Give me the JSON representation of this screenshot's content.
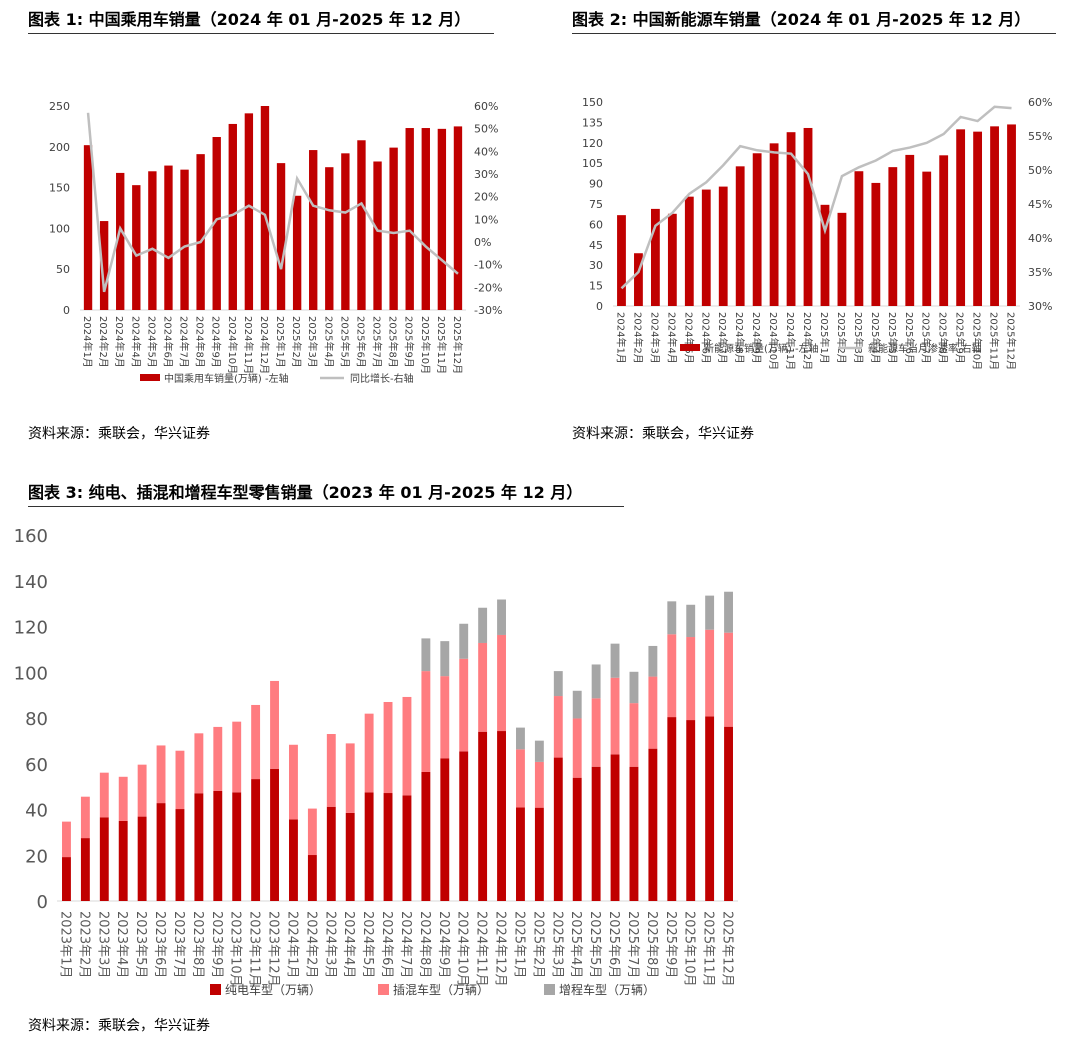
{
  "colors": {
    "red": "#c00000",
    "pink": "#ff7c80",
    "gray": "#a6a6a6",
    "line": "#bfbfbf"
  },
  "chart_data": [
    {
      "type": "bar+line",
      "title": "图表 1: 中国乘用车销量（2024 年 01 月-2025 年 12 月）",
      "source": "资料来源：乘联会，华兴证券",
      "categories": [
        "2024年1月",
        "2024年2月",
        "2024年3月",
        "2024年4月",
        "2024年5月",
        "2024年6月",
        "2024年7月",
        "2024年8月",
        "2024年9月",
        "2024年10月",
        "2024年11月",
        "2024年12月",
        "2025年1月",
        "2025年2月",
        "2025年3月",
        "2025年4月",
        "2025年5月",
        "2025年6月",
        "2025年7月",
        "2025年8月",
        "2025年9月",
        "2025年10月",
        "2025年11月",
        "2025年12月"
      ],
      "series": [
        {
          "name": "中国乘用车销量(万辆) -左轴",
          "type": "bar",
          "axis": "left",
          "values": [
            202,
            109,
            168,
            153,
            170,
            177,
            172,
            191,
            212,
            228,
            241,
            250,
            180,
            140,
            196,
            175,
            192,
            208,
            182,
            199,
            223,
            223,
            222,
            225
          ]
        },
        {
          "name": "同比增长-右轴",
          "type": "line",
          "axis": "right",
          "values": [
            57,
            -22,
            6,
            -6,
            -3,
            -7,
            -2,
            0,
            10,
            12,
            16,
            12,
            -12,
            28,
            16,
            14,
            13,
            17,
            5,
            4,
            5,
            -2,
            -8,
            -14
          ]
        }
      ],
      "ylim_left": [
        0,
        250
      ],
      "yticks_left": [
        0,
        50,
        100,
        150,
        200,
        250
      ],
      "ylim_right": [
        -30,
        60
      ],
      "yticks_right": [
        "-30%",
        "-20%",
        "-10%",
        "0%",
        "10%",
        "20%",
        "30%",
        "40%",
        "50%",
        "60%"
      ],
      "legend": "bottom"
    },
    {
      "type": "bar+line",
      "title": "图表 2: 中国新能源车销量（2024 年 01 月-2025 年 12 月）",
      "source": "资料来源：乘联会，华兴证券",
      "categories": [
        "2024年1月",
        "2024年2月",
        "2024年3月",
        "2024年4月",
        "2024年5月",
        "2024年6月",
        "2024年7月",
        "2024年8月",
        "2024年9月",
        "2024年10月",
        "2024年11月",
        "2024年12月",
        "2025年1月",
        "2025年2月",
        "2025年3月",
        "2025年4月",
        "2025年5月",
        "2025年6月",
        "2025年7月",
        "2025年8月",
        "2025年9月",
        "2025年10月",
        "2025年11月",
        "2025年12月"
      ],
      "series": [
        {
          "name": "新能源车销量(万辆) -左轴",
          "type": "bar",
          "axis": "left",
          "values": [
            66.8,
            38.8,
            71.4,
            67.8,
            80.4,
            85.6,
            87.8,
            102.7,
            112.3,
            119.6,
            127.8,
            130.9,
            74.4,
            68.5,
            99.1,
            90.5,
            102.1,
            111.1,
            98.8,
            110.8,
            129.9,
            128.2,
            132.1,
            133.5
          ]
        },
        {
          "name": "新能源车当月渗透率-右轴",
          "type": "line",
          "axis": "right",
          "values": [
            32.6,
            35,
            41.8,
            43.7,
            46.5,
            48.2,
            50.7,
            53.5,
            52.9,
            52.6,
            52.4,
            49.4,
            41.1,
            49.1,
            50.4,
            51.4,
            52.8,
            53.3,
            54.0,
            55.3,
            57.8,
            57.2,
            59.3,
            59.1
          ]
        }
      ],
      "ylim_left": [
        0,
        150
      ],
      "yticks_left": [
        0,
        15,
        30,
        45,
        60,
        75,
        90,
        105,
        120,
        135,
        150
      ],
      "ylim_right": [
        30,
        60
      ],
      "yticks_right": [
        "30%",
        "35%",
        "40%",
        "45%",
        "50%",
        "55%",
        "60%"
      ],
      "legend": "bottom"
    },
    {
      "type": "stacked_bar",
      "title": "图表 3: 纯电、插混和增程车型零售销量（2023 年 01 月-2025 年 12 月）",
      "source": "资料来源：乘联会，华兴证券",
      "categories": [
        "2023年1月",
        "2023年2月",
        "2023年3月",
        "2023年4月",
        "2023年5月",
        "2023年6月",
        "2023年7月",
        "2023年8月",
        "2023年9月",
        "2023年10月",
        "2023年11月",
        "2023年12月",
        "2024年1月",
        "2024年2月",
        "2024年3月",
        "2024年4月",
        "2024年5月",
        "2024年6月",
        "2024年7月",
        "2024年8月",
        "2024年9月",
        "2024年10月",
        "2024年11月",
        "2024年12月",
        "2025年1月",
        "2025年2月",
        "2025年3月",
        "2025年4月",
        "2025年5月",
        "2025年6月",
        "2025年7月",
        "2025年8月",
        "2025年9月",
        "2025年10月",
        "2025年11月",
        "2025年12月"
      ],
      "series": [
        {
          "name": "纯电车型（万辆）",
          "values": [
            19.2,
            27.5,
            36.6,
            35.0,
            36.9,
            42.8,
            40.2,
            47.1,
            48.1,
            47.5,
            53.3,
            57.8,
            35.7,
            20.1,
            41.2,
            38.5,
            47.5,
            47.2,
            46.2,
            56.4,
            62.4,
            65.4,
            74.0,
            74.3,
            40.9,
            40.8,
            62.7,
            53.9,
            58.7,
            64.1,
            58.7,
            66.6,
            80.4,
            79.1,
            80.7,
            76.2
          ]
        },
        {
          "name": "插混车型（万辆）",
          "values": [
            15.5,
            18.1,
            19.5,
            19.3,
            22.7,
            25.2,
            25.5,
            26.2,
            28.0,
            30.9,
            32.4,
            38.4,
            32.6,
            20.3,
            31.8,
            30.4,
            34.4,
            39.8,
            43.0,
            44.1,
            35.9,
            40.5,
            38.8,
            42.0,
            25.4,
            20.0,
            26.9,
            25.9,
            29.9,
            33.5,
            27.8,
            31.5,
            36.2,
            36.3,
            37.9,
            41.1
          ]
        },
        {
          "name": "增程车型（万辆）",
          "values": [
            0,
            0,
            0,
            0,
            0,
            0,
            0,
            0,
            0,
            0,
            0,
            0,
            0,
            0,
            0,
            0,
            0,
            0,
            0,
            14.3,
            15.3,
            15.3,
            15.4,
            15.5,
            9.5,
            9.3,
            10.9,
            12.1,
            14.8,
            14.9,
            13.7,
            13.4,
            14.4,
            14.1,
            14.9,
            17.9
          ]
        }
      ],
      "ylim": [
        0,
        160
      ],
      "yticks": [
        0,
        20,
        40,
        60,
        80,
        100,
        120,
        140,
        160
      ],
      "legend": "bottom"
    }
  ]
}
